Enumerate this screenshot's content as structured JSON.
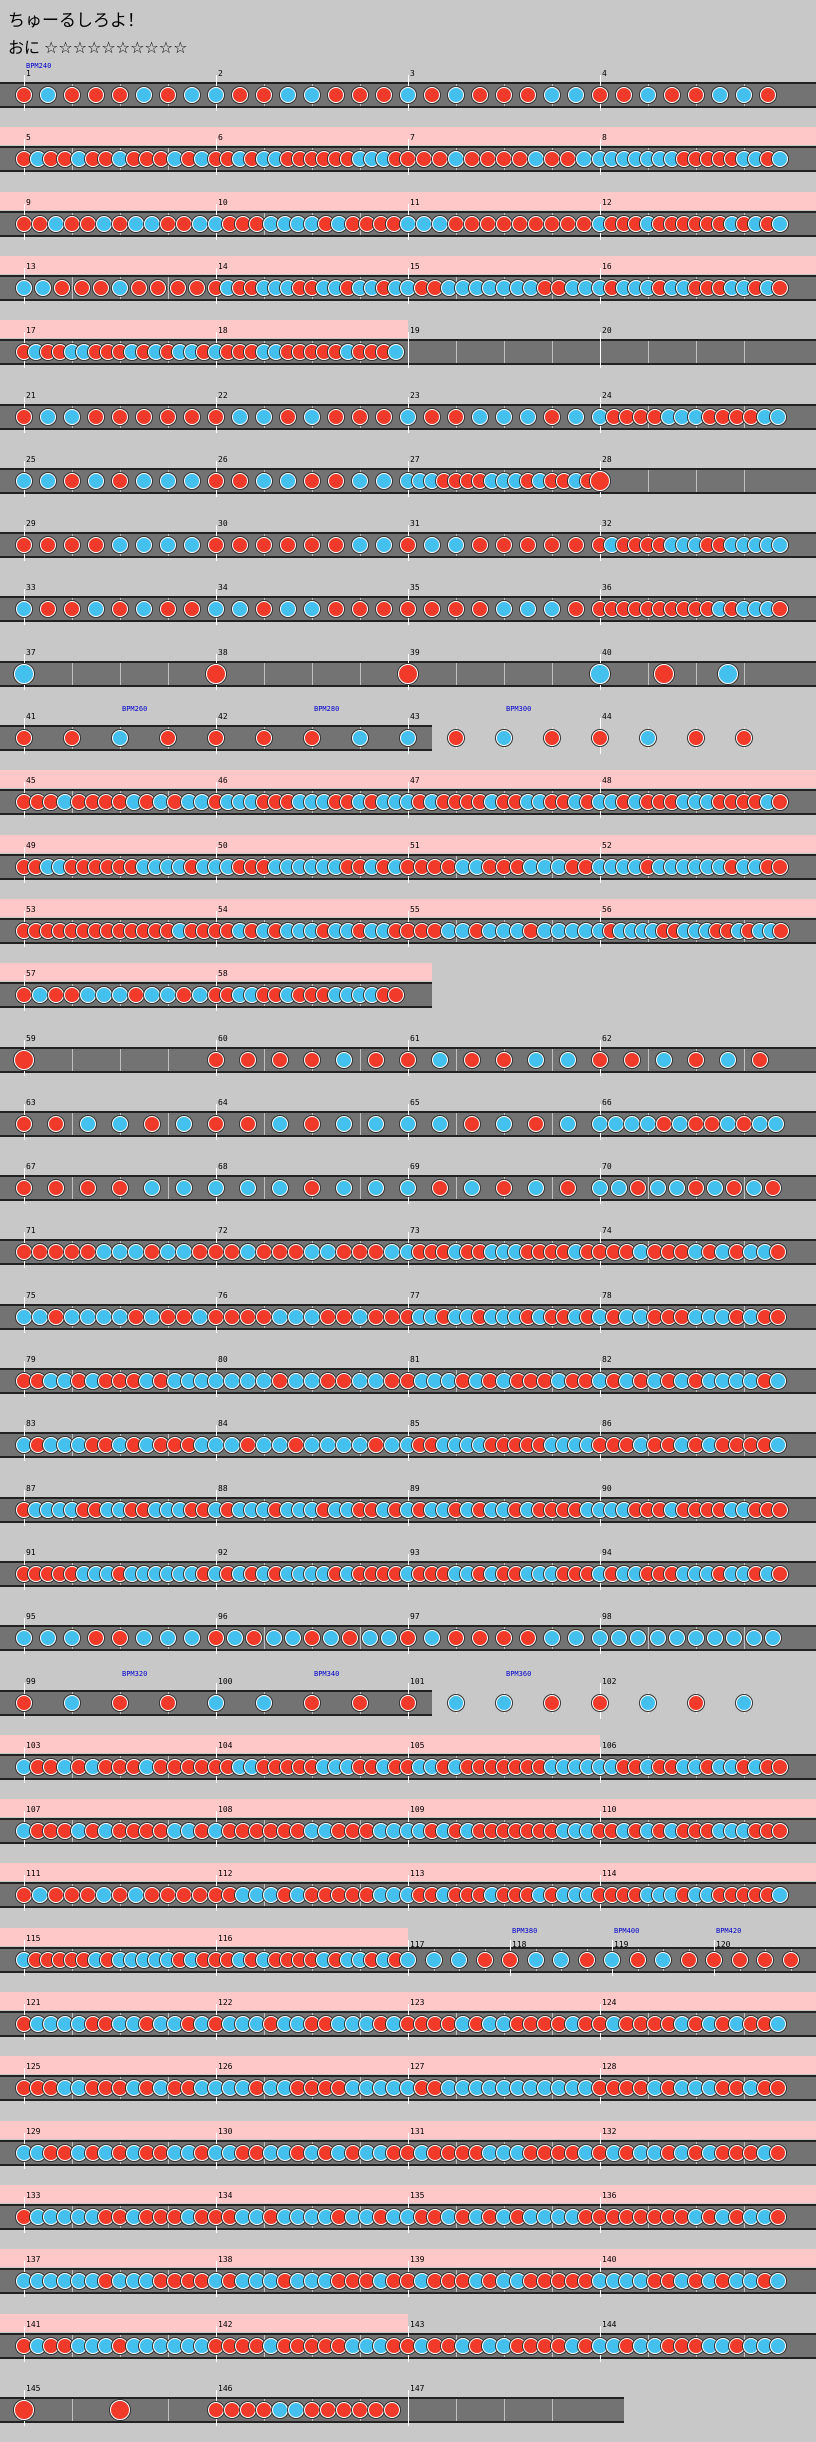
{
  "song": {
    "title": "ちゅーるしろよ！",
    "difficulty": "おに",
    "stars": "☆☆☆☆☆☆☆☆☆☆"
  },
  "colors": {
    "don": "#f23a2a",
    "ka": "#44c0ee",
    "gogo_band": "#ffc8c8",
    "lane": "#737373",
    "background": "#c8c8c8"
  },
  "rows": [
    {
      "measures": [
        1,
        2,
        3,
        4
      ],
      "gogo": [
        0,
        0,
        0,
        0
      ],
      "density": [
        8,
        8,
        8,
        8
      ],
      "bpm": [
        "BPM240"
      ]
    },
    {
      "measures": [
        5,
        6,
        7,
        8
      ],
      "gogo": [
        1,
        1,
        1,
        1
      ],
      "density": [
        14,
        16,
        12,
        16
      ],
      "bpm": []
    },
    {
      "measures": [
        9,
        10,
        11,
        12
      ],
      "gogo": [
        1,
        1,
        1,
        1
      ],
      "density": [
        12,
        14,
        12,
        16
      ],
      "bpm": []
    },
    {
      "measures": [
        13,
        14,
        15,
        16
      ],
      "gogo": [
        1,
        1,
        1,
        1
      ],
      "density": [
        10,
        16,
        14,
        16
      ],
      "bpm": []
    },
    {
      "measures": [
        17,
        18,
        19,
        20
      ],
      "gogo": [
        1,
        1,
        0,
        0
      ],
      "density": [
        16,
        16,
        0,
        0
      ],
      "bpm": []
    },
    {
      "measures": [
        21,
        22,
        23,
        24
      ],
      "gogo": [
        0,
        0,
        0,
        0
      ],
      "density": [
        8,
        8,
        8,
        14
      ],
      "bpm": []
    },
    {
      "measures": [
        25,
        26,
        27,
        28
      ],
      "gogo": [
        0,
        0,
        0,
        0
      ],
      "density": [
        8,
        8,
        16,
        1
      ],
      "bpm": []
    },
    {
      "measures": [
        29,
        30,
        31,
        32
      ],
      "gogo": [
        0,
        0,
        0,
        0
      ],
      "density": [
        8,
        8,
        8,
        16
      ],
      "bpm": []
    },
    {
      "measures": [
        33,
        34,
        35,
        36
      ],
      "gogo": [
        0,
        0,
        0,
        0
      ],
      "density": [
        8,
        8,
        8,
        16
      ],
      "bpm": []
    },
    {
      "measures": [
        37,
        38,
        39,
        40
      ],
      "gogo": [
        0,
        0,
        0,
        0
      ],
      "density": [
        1,
        1,
        1,
        3
      ],
      "bpm": []
    },
    {
      "measures": [
        41,
        42,
        43,
        44
      ],
      "gogo": [
        0,
        0,
        0,
        0
      ],
      "density": [
        4,
        4,
        4,
        4
      ],
      "bpm": [
        "BPM260",
        "BPM280",
        "BPM300"
      ],
      "short": true
    },
    {
      "measures": [
        45,
        46,
        47,
        48
      ],
      "gogo": [
        1,
        1,
        1,
        1
      ],
      "density": [
        14,
        16,
        16,
        16
      ],
      "bpm": []
    },
    {
      "measures": [
        49,
        50,
        51,
        52
      ],
      "gogo": [
        1,
        1,
        1,
        1
      ],
      "density": [
        16,
        16,
        14,
        16
      ],
      "bpm": []
    },
    {
      "measures": [
        53,
        54,
        55,
        56
      ],
      "gogo": [
        1,
        1,
        1,
        1
      ],
      "density": [
        16,
        16,
        14,
        18
      ],
      "bpm": []
    },
    {
      "measures": [
        57,
        58
      ],
      "gogo": [
        1,
        1
      ],
      "density": [
        12,
        16
      ],
      "bpm": [],
      "short": true
    },
    {
      "measures": [
        59,
        60,
        61,
        62
      ],
      "gogo": [
        0,
        0,
        0,
        0
      ],
      "density": [
        1,
        6,
        6,
        6
      ],
      "bpm": []
    },
    {
      "measures": [
        63,
        64,
        65,
        66
      ],
      "gogo": [
        0,
        0,
        0,
        0
      ],
      "density": [
        6,
        6,
        6,
        12
      ],
      "bpm": []
    },
    {
      "measures": [
        67,
        68,
        69,
        70
      ],
      "gogo": [
        0,
        0,
        0,
        0
      ],
      "density": [
        6,
        6,
        6,
        10
      ],
      "bpm": []
    },
    {
      "measures": [
        71,
        72,
        73,
        74
      ],
      "gogo": [
        0,
        0,
        0,
        0
      ],
      "density": [
        12,
        12,
        16,
        14
      ],
      "bpm": []
    },
    {
      "measures": [
        75,
        76,
        77,
        78
      ],
      "gogo": [
        0,
        0,
        0,
        0
      ],
      "density": [
        12,
        12,
        16,
        14
      ],
      "bpm": []
    },
    {
      "measures": [
        79,
        80,
        81,
        82
      ],
      "gogo": [
        0,
        0,
        0,
        0
      ],
      "density": [
        14,
        12,
        14,
        14
      ],
      "bpm": []
    },
    {
      "measures": [
        83,
        84,
        85,
        86
      ],
      "gogo": [
        0,
        0,
        0,
        0
      ],
      "density": [
        14,
        12,
        16,
        14
      ],
      "bpm": []
    },
    {
      "measures": [
        87,
        88,
        89,
        90
      ],
      "gogo": [
        0,
        0,
        0,
        0
      ],
      "density": [
        16,
        16,
        16,
        16
      ],
      "bpm": []
    },
    {
      "measures": [
        91,
        92,
        93,
        94
      ],
      "gogo": [
        0,
        0,
        0,
        0
      ],
      "density": [
        16,
        16,
        16,
        16
      ],
      "bpm": []
    },
    {
      "measures": [
        95,
        96,
        97,
        98
      ],
      "gogo": [
        0,
        0,
        0,
        0
      ],
      "density": [
        8,
        10,
        8,
        10
      ],
      "bpm": []
    },
    {
      "measures": [
        99,
        100,
        101,
        102
      ],
      "gogo": [
        0,
        0,
        0,
        0
      ],
      "density": [
        4,
        4,
        4,
        4
      ],
      "bpm": [
        "BPM320",
        "BPM340",
        "BPM360"
      ],
      "short": true
    },
    {
      "measures": [
        103,
        104,
        105,
        106
      ],
      "gogo": [
        1,
        1,
        1,
        0
      ],
      "density": [
        14,
        16,
        16,
        16
      ],
      "bpm": []
    },
    {
      "measures": [
        107,
        108,
        109,
        110
      ],
      "gogo": [
        1,
        1,
        1,
        1
      ],
      "density": [
        14,
        14,
        16,
        16
      ],
      "bpm": []
    },
    {
      "measures": [
        111,
        112,
        113,
        114
      ],
      "gogo": [
        1,
        1,
        1,
        1
      ],
      "density": [
        12,
        14,
        16,
        16
      ],
      "bpm": []
    },
    {
      "measures": [
        115,
        116,
        117,
        118,
        119,
        120
      ],
      "gogo": [
        1,
        1,
        0,
        0,
        0,
        0
      ],
      "density": [
        16,
        16,
        4,
        4,
        4,
        4
      ],
      "bpm": [
        "BPM380",
        "BPM400",
        "BPM420"
      ]
    },
    {
      "measures": [
        121,
        122,
        123,
        124
      ],
      "gogo": [
        1,
        1,
        1,
        1
      ],
      "density": [
        14,
        14,
        14,
        14
      ],
      "bpm": []
    },
    {
      "measures": [
        125,
        126,
        127,
        128
      ],
      "gogo": [
        1,
        1,
        1,
        1
      ],
      "density": [
        14,
        14,
        14,
        14
      ],
      "bpm": []
    },
    {
      "measures": [
        129,
        130,
        131,
        132
      ],
      "gogo": [
        1,
        1,
        1,
        1
      ],
      "density": [
        14,
        14,
        14,
        14
      ],
      "bpm": []
    },
    {
      "measures": [
        133,
        134,
        135,
        136
      ],
      "gogo": [
        1,
        1,
        1,
        1
      ],
      "density": [
        14,
        14,
        14,
        14
      ],
      "bpm": []
    },
    {
      "measures": [
        137,
        138,
        139,
        140
      ],
      "gogo": [
        1,
        1,
        1,
        1
      ],
      "density": [
        14,
        14,
        14,
        14
      ],
      "bpm": []
    },
    {
      "measures": [
        141,
        142,
        143,
        144
      ],
      "gogo": [
        1,
        1,
        0,
        0
      ],
      "density": [
        14,
        14,
        14,
        14
      ],
      "bpm": []
    },
    {
      "measures": [
        145,
        146,
        147
      ],
      "gogo": [
        0,
        0,
        0
      ],
      "density": [
        2,
        12,
        0
      ],
      "bpm": []
    }
  ]
}
